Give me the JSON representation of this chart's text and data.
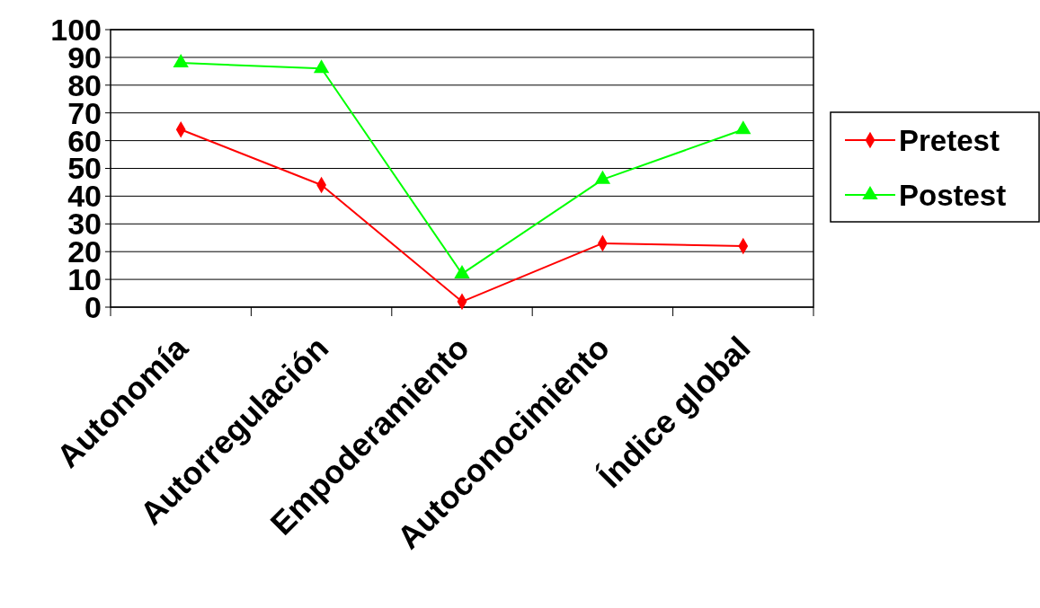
{
  "chart_data": {
    "type": "line",
    "categories": [
      "Autonomía",
      "Autorregulación",
      "Empoderamiento",
      "Autoconocimiento",
      "Índice global"
    ],
    "series": [
      {
        "name": "Pretest",
        "color": "#ff0000",
        "marker": "diamond",
        "values": [
          64,
          44,
          2,
          23,
          22
        ]
      },
      {
        "name": "Postest",
        "color": "#00ff00",
        "marker": "triangle",
        "values": [
          88,
          86,
          12,
          46,
          64
        ]
      }
    ],
    "ylim": [
      0,
      100
    ],
    "yticks": [
      0,
      10,
      20,
      30,
      40,
      50,
      60,
      70,
      80,
      90,
      100
    ],
    "grid": "y",
    "legend": "right"
  }
}
